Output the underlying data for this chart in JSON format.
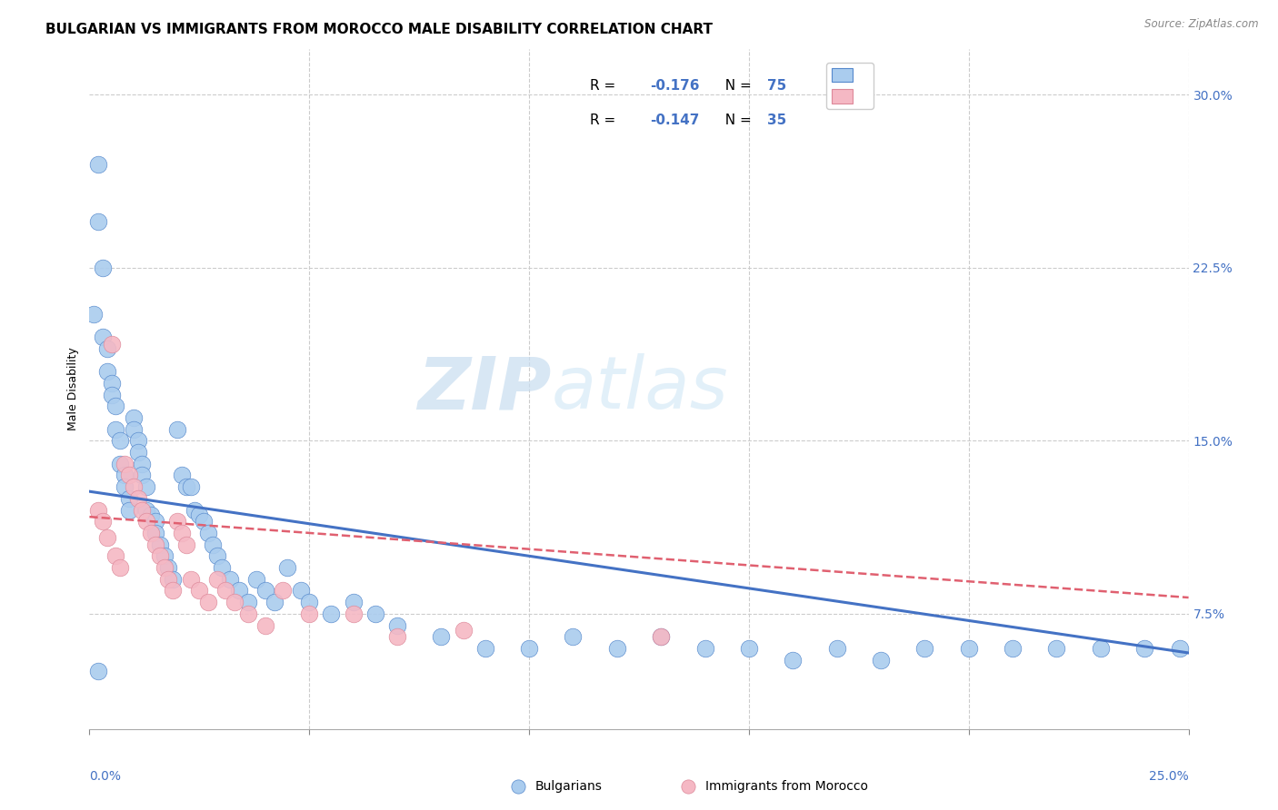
{
  "title": "BULGARIAN VS IMMIGRANTS FROM MOROCCO MALE DISABILITY CORRELATION CHART",
  "source": "Source: ZipAtlas.com",
  "ylabel": "Male Disability",
  "xlim": [
    0.0,
    0.25
  ],
  "ylim": [
    0.025,
    0.32
  ],
  "yticks": [
    0.075,
    0.15,
    0.225,
    0.3
  ],
  "ytick_labels": [
    "7.5%",
    "15.0%",
    "22.5%",
    "30.0%"
  ],
  "watermark_zip": "ZIP",
  "watermark_atlas": "atlas",
  "series1_label": "Bulgarians",
  "series2_label": "Immigrants from Morocco",
  "series1_color": "#aaccee",
  "series2_color": "#f5b8c4",
  "series1_edge_color": "#5588cc",
  "series2_edge_color": "#dd8899",
  "series1_line_color": "#4472c4",
  "series2_line_color": "#e06070",
  "legend_r1": "R = −0.176",
  "legend_n1": "N = 75",
  "legend_r2": "R = −0.147",
  "legend_n2": "N = 35",
  "bulgarians_x": [
    0.001,
    0.002,
    0.002,
    0.003,
    0.003,
    0.004,
    0.004,
    0.005,
    0.005,
    0.006,
    0.006,
    0.007,
    0.007,
    0.008,
    0.008,
    0.009,
    0.009,
    0.01,
    0.01,
    0.011,
    0.011,
    0.012,
    0.012,
    0.013,
    0.013,
    0.014,
    0.015,
    0.015,
    0.016,
    0.017,
    0.018,
    0.019,
    0.02,
    0.021,
    0.022,
    0.023,
    0.024,
    0.025,
    0.026,
    0.027,
    0.028,
    0.029,
    0.03,
    0.032,
    0.034,
    0.036,
    0.038,
    0.04,
    0.042,
    0.045,
    0.048,
    0.05,
    0.055,
    0.06,
    0.065,
    0.07,
    0.08,
    0.09,
    0.1,
    0.11,
    0.12,
    0.13,
    0.14,
    0.15,
    0.16,
    0.17,
    0.18,
    0.19,
    0.2,
    0.21,
    0.22,
    0.23,
    0.24,
    0.248,
    0.002
  ],
  "bulgarians_y": [
    0.205,
    0.245,
    0.27,
    0.225,
    0.195,
    0.19,
    0.18,
    0.175,
    0.17,
    0.165,
    0.155,
    0.15,
    0.14,
    0.135,
    0.13,
    0.125,
    0.12,
    0.16,
    0.155,
    0.15,
    0.145,
    0.14,
    0.135,
    0.13,
    0.12,
    0.118,
    0.115,
    0.11,
    0.105,
    0.1,
    0.095,
    0.09,
    0.155,
    0.135,
    0.13,
    0.13,
    0.12,
    0.118,
    0.115,
    0.11,
    0.105,
    0.1,
    0.095,
    0.09,
    0.085,
    0.08,
    0.09,
    0.085,
    0.08,
    0.095,
    0.085,
    0.08,
    0.075,
    0.08,
    0.075,
    0.07,
    0.065,
    0.06,
    0.06,
    0.065,
    0.06,
    0.065,
    0.06,
    0.06,
    0.055,
    0.06,
    0.055,
    0.06,
    0.06,
    0.06,
    0.06,
    0.06,
    0.06,
    0.06,
    0.05
  ],
  "morocco_x": [
    0.002,
    0.003,
    0.004,
    0.005,
    0.006,
    0.007,
    0.008,
    0.009,
    0.01,
    0.011,
    0.012,
    0.013,
    0.014,
    0.015,
    0.016,
    0.017,
    0.018,
    0.019,
    0.02,
    0.021,
    0.022,
    0.023,
    0.025,
    0.027,
    0.029,
    0.031,
    0.033,
    0.036,
    0.04,
    0.044,
    0.05,
    0.06,
    0.07,
    0.13,
    0.085
  ],
  "morocco_y": [
    0.12,
    0.115,
    0.108,
    0.192,
    0.1,
    0.095,
    0.14,
    0.135,
    0.13,
    0.125,
    0.12,
    0.115,
    0.11,
    0.105,
    0.1,
    0.095,
    0.09,
    0.085,
    0.115,
    0.11,
    0.105,
    0.09,
    0.085,
    0.08,
    0.09,
    0.085,
    0.08,
    0.075,
    0.07,
    0.085,
    0.075,
    0.075,
    0.065,
    0.065,
    0.068
  ],
  "line1_x0": 0.0,
  "line1_y0": 0.128,
  "line1_x1": 0.25,
  "line1_y1": 0.058,
  "line2_x0": 0.0,
  "line2_y0": 0.117,
  "line2_x1": 0.25,
  "line2_y1": 0.082,
  "background_color": "#ffffff",
  "grid_color": "#cccccc",
  "title_fontsize": 11,
  "axis_label_fontsize": 9,
  "tick_fontsize": 10,
  "legend_fontsize": 11
}
